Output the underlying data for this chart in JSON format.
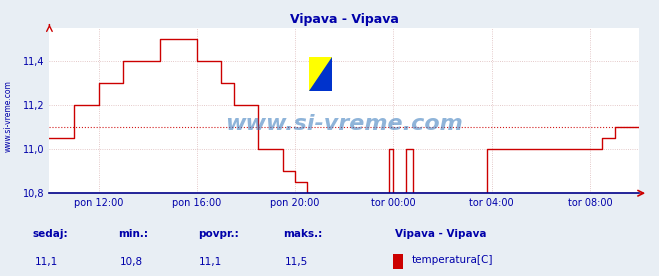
{
  "title": "Vipava - Vipava",
  "bg_color": "#e8eef4",
  "plot_bg_color": "#ffffff",
  "line_color": "#cc0000",
  "line_width": 1.0,
  "ylim": [
    10.8,
    11.55
  ],
  "yticks": [
    10.8,
    11.0,
    11.2,
    11.4
  ],
  "avg_line_y": 11.1,
  "avg_line_color": "#cc0000",
  "grid_color": "#cc9999",
  "grid_style": ":",
  "xlabel_color": "#0000aa",
  "ylabel_color": "#0000aa",
  "xtick_labels": [
    "pon 12:00",
    "pon 16:00",
    "pon 20:00",
    "tor 00:00",
    "tor 04:00",
    "tor 08:00"
  ],
  "title_color": "#0000aa",
  "watermark": "www.si-vreme.com",
  "watermark_color": "#3377bb",
  "footer_labels": [
    "sedaj:",
    "min.:",
    "povpr.:",
    "maks.:"
  ],
  "footer_values": [
    "11,1",
    "10,8",
    "11,1",
    "11,5"
  ],
  "footer_series_name": "Vipava - Vipava",
  "footer_legend_label": "temperatura[C]",
  "footer_color": "#0000aa",
  "sidebar_text": "www.si-vreme.com",
  "sidebar_color": "#0000aa",
  "spine_color": "#000088",
  "arrow_color": "#cc0000"
}
